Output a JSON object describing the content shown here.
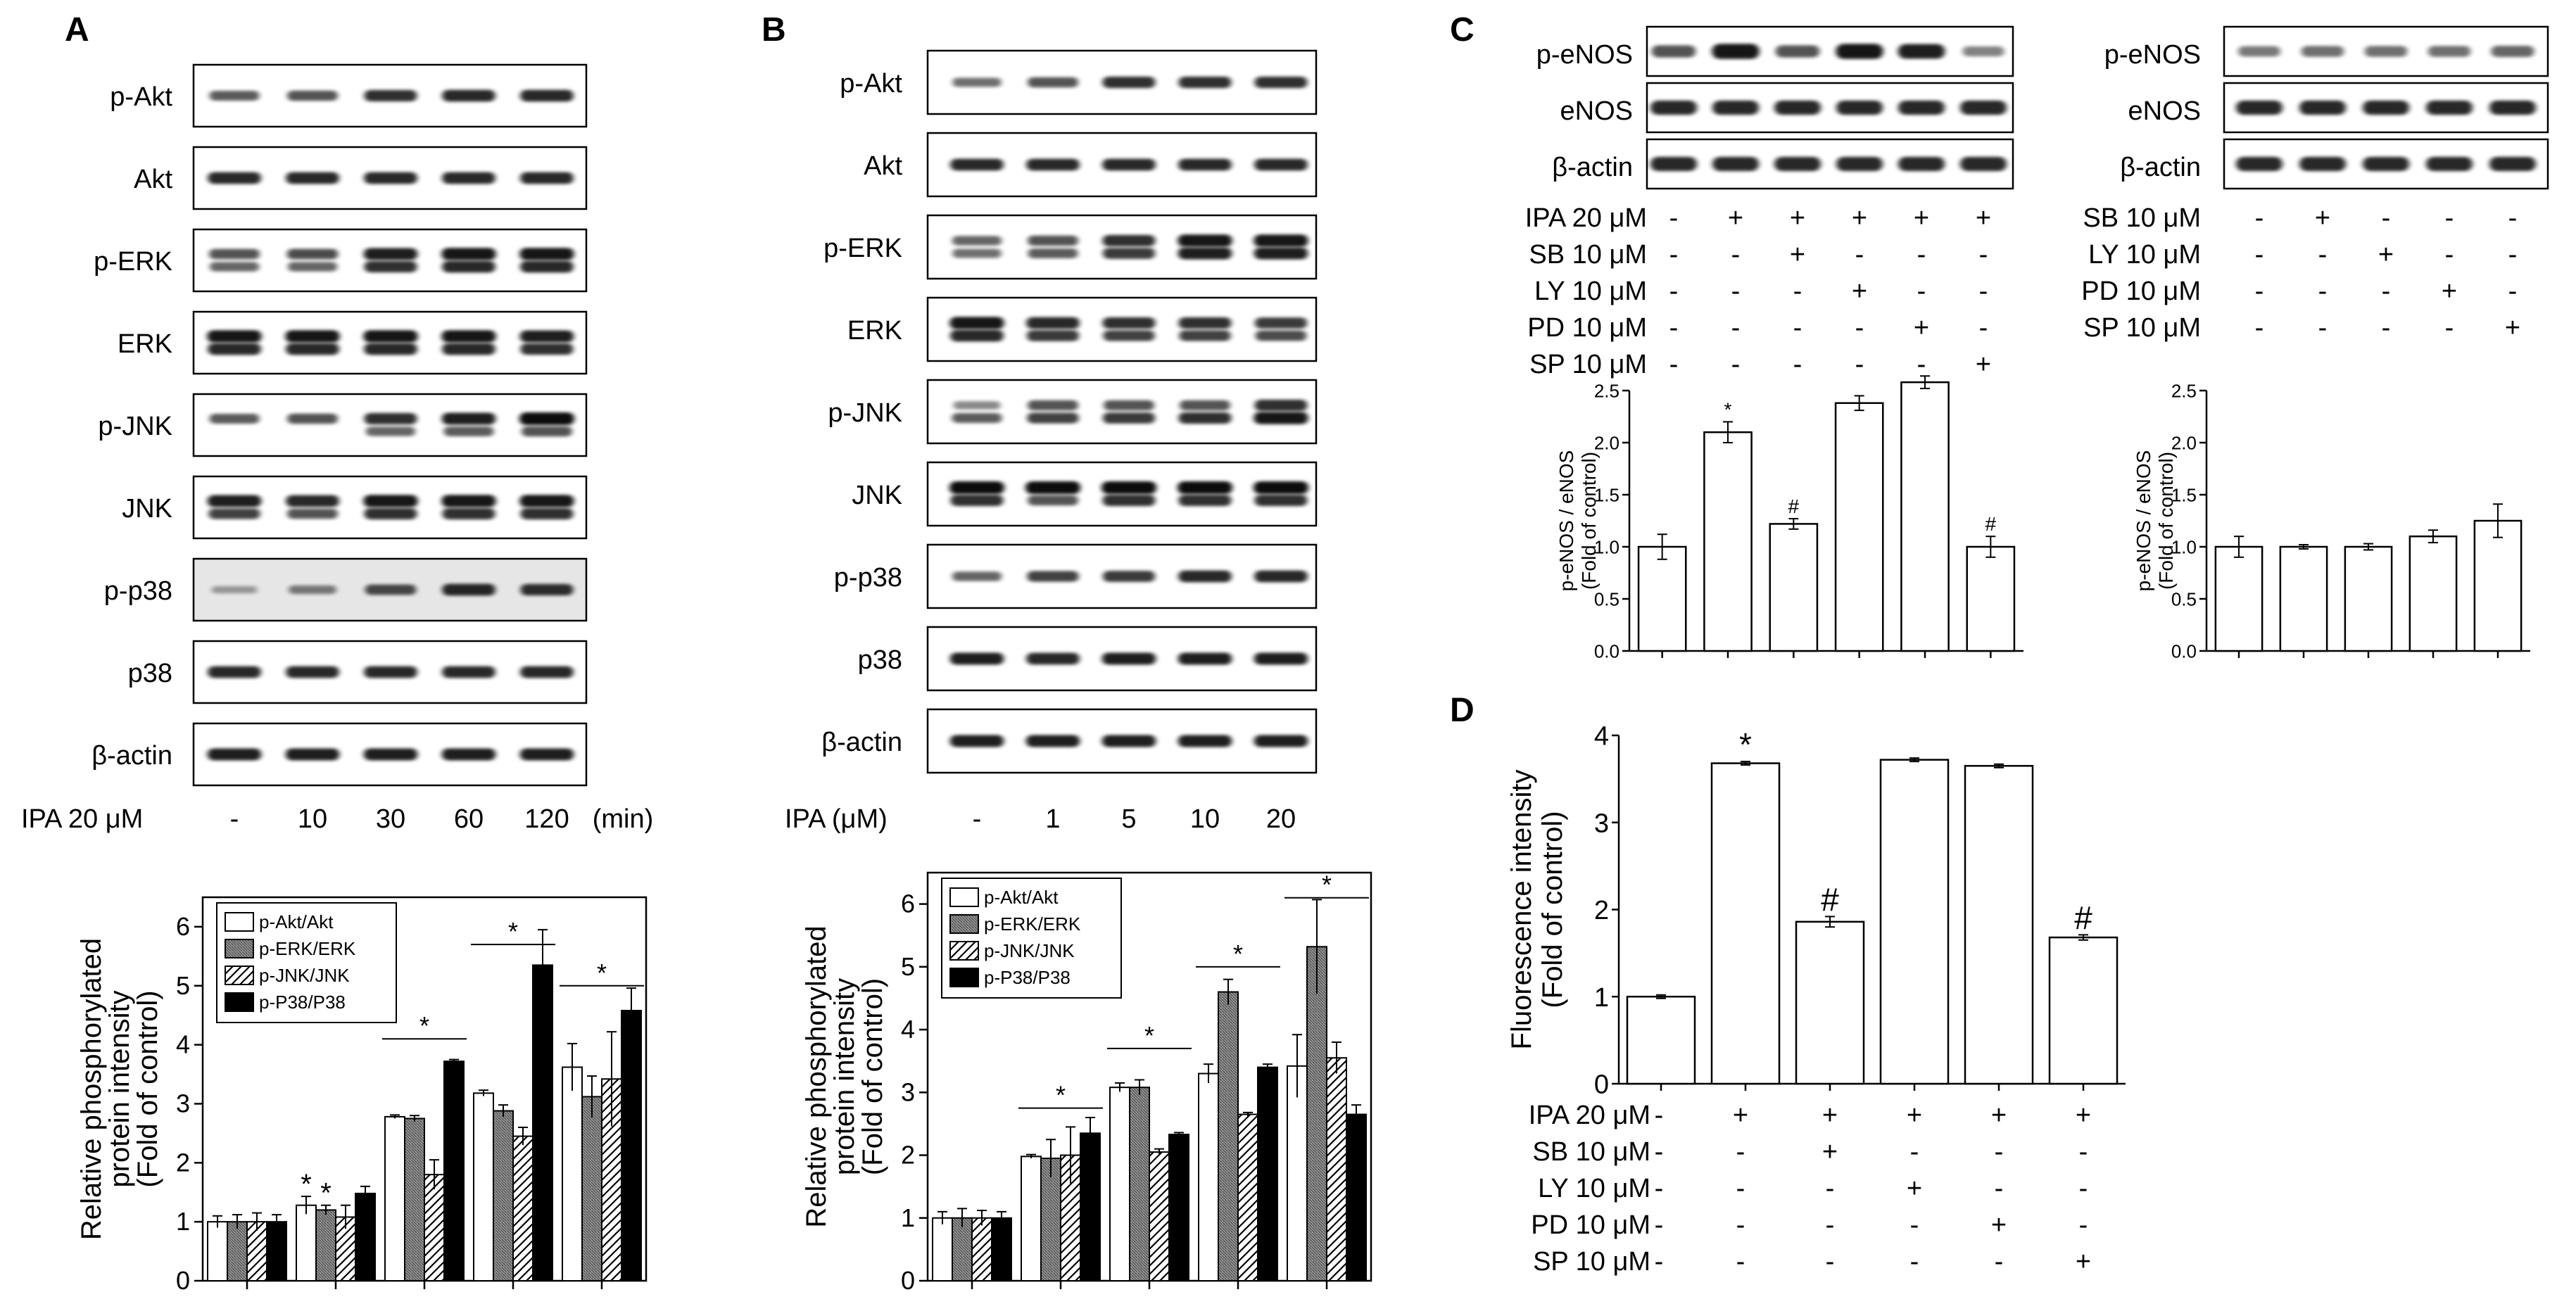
{
  "panel_letters": {
    "a": "A",
    "b": "B",
    "c": "C",
    "d": "D"
  },
  "colors": {
    "black": "#000000",
    "white": "#ffffff",
    "gray": "#6e6e6e"
  },
  "blots": {
    "a": {
      "rows": [
        "p-Akt",
        "Akt",
        "p-ERK",
        "ERK",
        "p-JNK",
        "JNK",
        "p-p38",
        "p38",
        "β-actin"
      ],
      "treatment_label": "IPA 20 μM",
      "lanes": [
        "-",
        "10",
        "30",
        "60",
        "120"
      ],
      "unit": "(min)"
    },
    "b": {
      "rows": [
        "p-Akt",
        "Akt",
        "p-ERK",
        "ERK",
        "p-JNK",
        "JNK",
        "p-p38",
        "p38",
        "β-actin"
      ],
      "treatment_label": "IPA (μM)",
      "lanes": [
        "-",
        "1",
        "5",
        "10",
        "20"
      ]
    },
    "c_left": {
      "rows": [
        "p-eNOS",
        "eNOS",
        "β-actin"
      ],
      "treatments": [
        {
          "label": "IPA 20 μM",
          "signs": [
            "-",
            "+",
            "+",
            "+",
            "+",
            "+"
          ]
        },
        {
          "label": "SB 10 μM",
          "signs": [
            "-",
            "-",
            "+",
            "-",
            "-",
            "-"
          ]
        },
        {
          "label": "LY 10 μM",
          "signs": [
            "-",
            "-",
            "-",
            "+",
            "-",
            "-"
          ]
        },
        {
          "label": "PD 10 μM",
          "signs": [
            "-",
            "-",
            "-",
            "-",
            "+",
            "-"
          ]
        },
        {
          "label": "SP 10 μM",
          "signs": [
            "-",
            "-",
            "-",
            "-",
            "-",
            "+"
          ]
        }
      ]
    },
    "c_right": {
      "rows": [
        "p-eNOS",
        "eNOS",
        "β-actin"
      ],
      "treatments": [
        {
          "label": "SB 10 μM",
          "signs": [
            "-",
            "+",
            "-",
            "-",
            "-"
          ]
        },
        {
          "label": "LY 10 μM",
          "signs": [
            "-",
            "-",
            "+",
            "-",
            "-"
          ]
        },
        {
          "label": "PD 10 μM",
          "signs": [
            "-",
            "-",
            "-",
            "+",
            "-"
          ]
        },
        {
          "label": "SP 10 μM",
          "signs": [
            "-",
            "-",
            "-",
            "-",
            "+"
          ]
        }
      ]
    },
    "d": {
      "treatments": [
        {
          "label": "IPA 20 μM",
          "signs": [
            "-",
            "+",
            "+",
            "+",
            "+",
            "+"
          ]
        },
        {
          "label": "SB 10 μM",
          "signs": [
            "-",
            "-",
            "+",
            "-",
            "-",
            "-"
          ]
        },
        {
          "label": "LY 10 μM",
          "signs": [
            "-",
            "-",
            "-",
            "+",
            "-",
            "-"
          ]
        },
        {
          "label": "PD 10 μM",
          "signs": [
            "-",
            "-",
            "-",
            "-",
            "+",
            "-"
          ]
        },
        {
          "label": "SP 10 μM",
          "signs": [
            "-",
            "-",
            "-",
            "-",
            "-",
            "+"
          ]
        }
      ]
    }
  },
  "chart_data": [
    {
      "id": "a",
      "type": "bar",
      "ylabel": "Relative phosphorylated protein intensity (Fold of control)",
      "ylabel_lines": [
        "Relative phosphorylated",
        "protein intensity",
        "(Fold of control)"
      ],
      "ylim": [
        0,
        6.5
      ],
      "yticks": [
        "0",
        "1",
        "2",
        "3",
        "4",
        "5",
        "6"
      ],
      "legend": [
        "p-Akt/Akt",
        "p-ERK/ERK",
        "p-JNK/JNK",
        "p-P38/P38"
      ],
      "series": [
        {
          "name": "p-Akt/Akt",
          "values": [
            1.0,
            1.28,
            2.78,
            3.18,
            3.62
          ],
          "errors": [
            0.1,
            0.15,
            0.03,
            0.05,
            0.4
          ]
        },
        {
          "name": "p-ERK/ERK",
          "values": [
            1.0,
            1.2,
            2.75,
            2.88,
            3.12
          ],
          "errors": [
            0.12,
            0.08,
            0.05,
            0.1,
            0.35
          ]
        },
        {
          "name": "p-JNK/JNK",
          "values": [
            1.0,
            1.08,
            1.8,
            2.45,
            3.42
          ],
          "errors": [
            0.15,
            0.2,
            0.25,
            0.15,
            0.8
          ]
        },
        {
          "name": "p-P38/P38",
          "values": [
            1.0,
            1.48,
            3.72,
            5.35,
            4.58
          ],
          "errors": [
            0.12,
            0.12,
            0.03,
            0.6,
            0.38
          ]
        }
      ],
      "sig_markers": [
        {
          "group": 1,
          "text": "*",
          "bar": 0
        },
        {
          "group": 1,
          "text": "*",
          "bar": 1
        }
      ],
      "sig_lines": [
        {
          "from": 2,
          "to": 2,
          "y": 4.1,
          "text": "*"
        },
        {
          "from": 3,
          "to": 3,
          "y": 5.7,
          "text": "*"
        },
        {
          "from": 4,
          "to": 4,
          "y": 5.0,
          "text": "*"
        }
      ]
    },
    {
      "id": "b",
      "type": "bar",
      "ylabel": "Relative phosphorylated protein intensity (Fold of control)",
      "ylabel_lines": [
        "Relative phosphorylated",
        "protein intensity",
        "(Fold of control)"
      ],
      "ylim": [
        0,
        6.5
      ],
      "yticks": [
        "0",
        "1",
        "2",
        "3",
        "4",
        "5",
        "6"
      ],
      "legend": [
        "p-Akt/Akt",
        "p-ERK/ERK",
        "p-JNK/JNK",
        "p-P38/P38"
      ],
      "series": [
        {
          "name": "p-Akt/Akt",
          "values": [
            1.0,
            1.98,
            3.08,
            3.3,
            3.42
          ],
          "errors": [
            0.1,
            0.03,
            0.07,
            0.15,
            0.5
          ]
        },
        {
          "name": "p-ERK/ERK",
          "values": [
            1.0,
            1.95,
            3.08,
            4.6,
            5.32
          ],
          "errors": [
            0.15,
            0.3,
            0.12,
            0.2,
            0.75
          ]
        },
        {
          "name": "p-JNK/JNK",
          "values": [
            1.0,
            2.0,
            2.05,
            2.65,
            3.55
          ],
          "errors": [
            0.12,
            0.45,
            0.05,
            0.03,
            0.25
          ]
        },
        {
          "name": "p-P38/P38",
          "values": [
            1.0,
            2.35,
            2.33,
            3.4,
            2.65
          ],
          "errors": [
            0.1,
            0.25,
            0.03,
            0.05,
            0.15
          ]
        }
      ],
      "sig_lines": [
        {
          "from": 1,
          "to": 1,
          "y": 2.75,
          "text": "*"
        },
        {
          "from": 2,
          "to": 2,
          "y": 3.7,
          "text": "*"
        },
        {
          "from": 3,
          "to": 3,
          "y": 5.0,
          "text": "*"
        },
        {
          "from": 4,
          "to": 4,
          "y": 6.1,
          "text": "*"
        }
      ]
    },
    {
      "id": "c_left",
      "type": "bar",
      "ylabel": "p-eNOS / eNOS (Fold of control)",
      "ylabel_lines": [
        "p-eNOS / eNOS",
        "(Fold of control)"
      ],
      "ylim": [
        0,
        2.5
      ],
      "yticks": [
        "0.0",
        "0.5",
        "1.0",
        "1.5",
        "2.0",
        "2.5"
      ],
      "values": [
        1.0,
        2.1,
        1.22,
        2.38,
        2.58,
        1.0
      ],
      "errors": [
        0.12,
        0.1,
        0.05,
        0.07,
        0.06,
        0.1
      ],
      "markers": [
        "",
        "*",
        "#",
        "",
        "",
        "#"
      ]
    },
    {
      "id": "c_right",
      "type": "bar",
      "ylabel": "p-eNOS / eNOS (Fold of control)",
      "ylabel_lines": [
        "p-eNOS / eNOS",
        "(Fold of control)"
      ],
      "ylim": [
        0,
        2.5
      ],
      "yticks": [
        "0.0",
        "0.5",
        "1.0",
        "1.5",
        "2.0",
        "2.5"
      ],
      "values": [
        1.0,
        1.0,
        1.0,
        1.1,
        1.25
      ],
      "errors": [
        0.1,
        0.02,
        0.03,
        0.06,
        0.16
      ],
      "markers": [
        "",
        "",
        "",
        "",
        ""
      ]
    },
    {
      "id": "d",
      "type": "bar",
      "ylabel": "Fluorescence intensity (Fold of control)",
      "ylabel_lines": [
        "Fluorescence intensity",
        "(Fold of control)"
      ],
      "ylim": [
        0,
        4
      ],
      "yticks": [
        "0",
        "1",
        "2",
        "3",
        "4"
      ],
      "values": [
        1.0,
        3.68,
        1.86,
        3.72,
        3.65,
        1.68
      ],
      "errors": [
        0.02,
        0.02,
        0.06,
        0.02,
        0.02,
        0.03
      ],
      "markers": [
        "",
        "*",
        "#",
        "",
        "",
        "#"
      ]
    }
  ]
}
